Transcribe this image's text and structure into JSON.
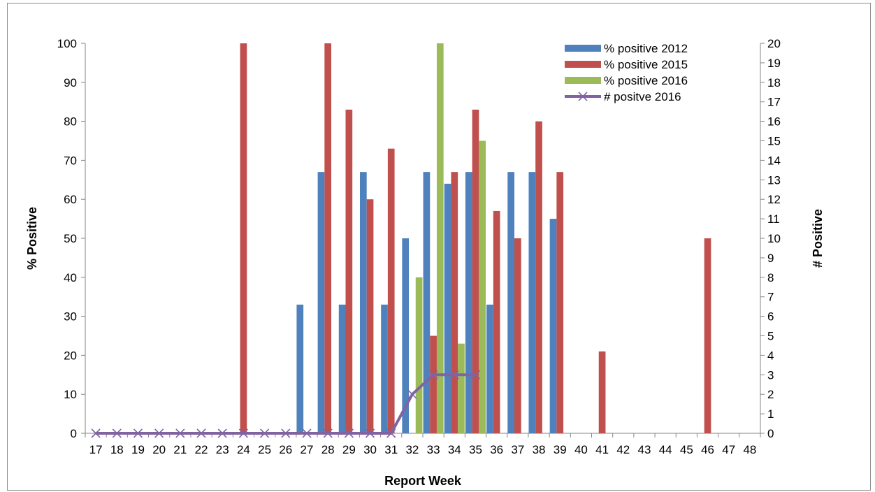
{
  "chart_data": {
    "type": "bar",
    "x_label": "Report Week",
    "y_label_left": "% Positive",
    "y_label_right": "# Positive",
    "left_axis": {
      "min": 0,
      "max": 100,
      "step": 10
    },
    "right_axis": {
      "min": 0,
      "max": 20,
      "step": 1
    },
    "categories": [
      "17",
      "18",
      "19",
      "20",
      "21",
      "22",
      "23",
      "24",
      "25",
      "26",
      "27",
      "28",
      "29",
      "30",
      "31",
      "32",
      "33",
      "34",
      "35",
      "36",
      "37",
      "38",
      "39",
      "40",
      "41",
      "42",
      "43",
      "44",
      "45",
      "46",
      "47",
      "48"
    ],
    "bar_series": [
      {
        "name": "% positive 2012",
        "color": "#4f81bd",
        "values": [
          null,
          null,
          null,
          null,
          null,
          null,
          null,
          null,
          null,
          null,
          33,
          67,
          33,
          67,
          33,
          50,
          67,
          64,
          67,
          33,
          67,
          67,
          55,
          null,
          null,
          null,
          null,
          null,
          null,
          null,
          null,
          null
        ]
      },
      {
        "name": "% positive 2015",
        "color": "#c0504d",
        "values": [
          null,
          null,
          null,
          null,
          null,
          null,
          null,
          100,
          null,
          null,
          null,
          100,
          83,
          60,
          73,
          null,
          25,
          67,
          83,
          57,
          50,
          80,
          67,
          null,
          21,
          null,
          null,
          null,
          null,
          50,
          null,
          null
        ]
      },
      {
        "name": "% positive  2016",
        "color": "#9bbb59",
        "values": [
          null,
          null,
          null,
          null,
          null,
          null,
          null,
          null,
          null,
          null,
          null,
          null,
          null,
          null,
          null,
          40,
          100,
          23,
          75,
          null,
          null,
          null,
          null,
          null,
          null,
          null,
          null,
          null,
          null,
          null,
          null,
          null
        ]
      }
    ],
    "line_series": {
      "name": "# positve 2016",
      "color": "#8064a2",
      "axis": "right",
      "values": [
        0,
        0,
        0,
        0,
        0,
        0,
        0,
        0,
        0,
        0,
        0,
        0,
        0,
        0,
        0,
        2,
        3,
        3,
        3
      ]
    },
    "legend_position": "top-right"
  }
}
